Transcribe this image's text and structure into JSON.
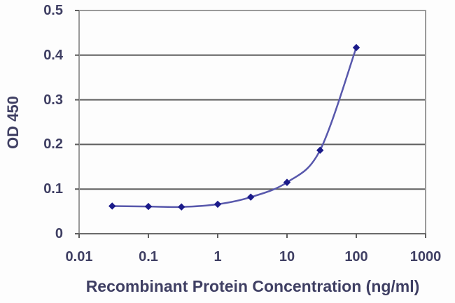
{
  "chart_data": {
    "type": "line",
    "title": "",
    "xlabel": "Recombinant Protein Concentration (ng/ml)",
    "ylabel": "OD 450",
    "x_scale": "log10",
    "x": [
      0.03,
      0.1,
      0.3,
      1,
      3,
      10,
      30,
      100
    ],
    "y": [
      0.062,
      0.061,
      0.06,
      0.066,
      0.082,
      0.115,
      0.187,
      0.417
    ],
    "xlim": [
      0.01,
      1000
    ],
    "ylim": [
      0,
      0.5
    ],
    "x_tick_labels": [
      "0.01",
      "0.1",
      "1",
      "10",
      "100",
      "1000"
    ],
    "y_tick_labels": [
      "0",
      "0.1",
      "0.2",
      "0.3",
      "0.4",
      "0.5"
    ],
    "y_tick_values": [
      0,
      0.1,
      0.2,
      0.3,
      0.4,
      0.5
    ],
    "grid": "horizontal",
    "legend": "none",
    "marker": "diamond",
    "line_smoothing": true,
    "colors": {
      "line": "#5858ac",
      "marker": "#1b1b8a",
      "text": "#3f3f63",
      "gridline": "#5f5f5f",
      "border": "#9a9a9a",
      "axis": "#6a6a6a",
      "background": "#ffffff"
    }
  }
}
